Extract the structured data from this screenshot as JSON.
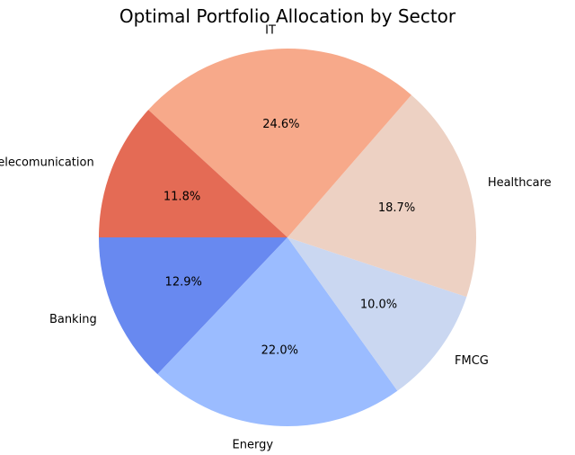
{
  "chart_data": {
    "type": "pie",
    "title": "Optimal Portfolio Allocation by Sector",
    "start_angle_deg": 180,
    "direction": "counterclockwise",
    "slices": [
      {
        "label": "Banking",
        "value": 12.9,
        "pct_label": "12.9%",
        "color": "#6889f0"
      },
      {
        "label": "Energy",
        "value": 22.0,
        "pct_label": "22.0%",
        "color": "#9bbcff"
      },
      {
        "label": "FMCG",
        "value": 10.0,
        "pct_label": "10.0%",
        "color": "#cad7f1"
      },
      {
        "label": "Healthcare",
        "value": 18.7,
        "pct_label": "18.7%",
        "color": "#edd1c3"
      },
      {
        "label": "IT",
        "value": 24.6,
        "pct_label": "24.6%",
        "color": "#f7a98a"
      },
      {
        "label": "Telecomunication",
        "value": 11.8,
        "pct_label": "11.8%",
        "color": "#e46b55"
      }
    ]
  }
}
